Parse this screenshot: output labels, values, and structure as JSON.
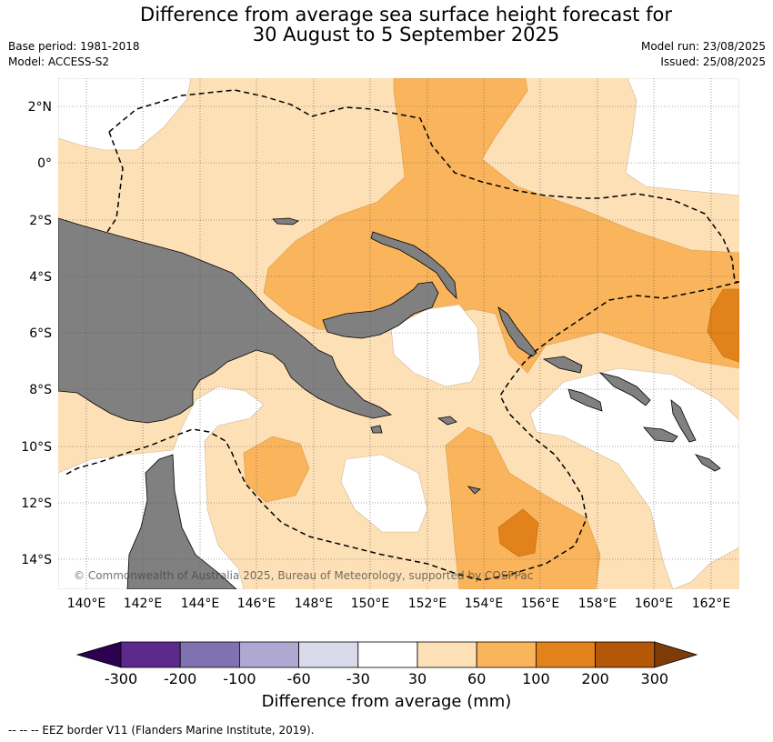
{
  "title_line1": "Difference from average sea surface height forecast for",
  "title_line2": "30 August to 5 September 2025",
  "base_period": "Base period: 1981-2018",
  "model": "Model: ACCESS-S2",
  "model_run": "Model run: 23/08/2025",
  "issued": "Issued: 25/08/2025",
  "copyright": "© Commonwealth of Australia 2025, Bureau of Meteorology, supported by COSPPac",
  "footer": "--  --  -- EEZ border V11 (Flanders Marine Institute, 2019).",
  "colorbar": {
    "label": "Difference from average (mm)",
    "ticks": [
      "-300",
      "-200",
      "-100",
      "-60",
      "-30",
      "30",
      "60",
      "100",
      "200",
      "300"
    ],
    "colors": [
      "#5b2a8c",
      "#8072b0",
      "#b1a8d2",
      "#d8daea",
      "#ffffff",
      "#fde0b6",
      "#f9b45c",
      "#e2821a",
      "#b45708"
    ],
    "extend_low": "#2d0050",
    "extend_high": "#7f3b08"
  },
  "map": {
    "lon_ticks": [
      "140°E",
      "142°E",
      "144°E",
      "146°E",
      "148°E",
      "150°E",
      "152°E",
      "154°E",
      "156°E",
      "158°E",
      "160°E",
      "162°E"
    ],
    "lat_ticks": [
      "2°N",
      "0°",
      "2°S",
      "4°S",
      "6°S",
      "8°S",
      "10°S",
      "12°S",
      "14°S"
    ],
    "land_color": "#808080"
  }
}
